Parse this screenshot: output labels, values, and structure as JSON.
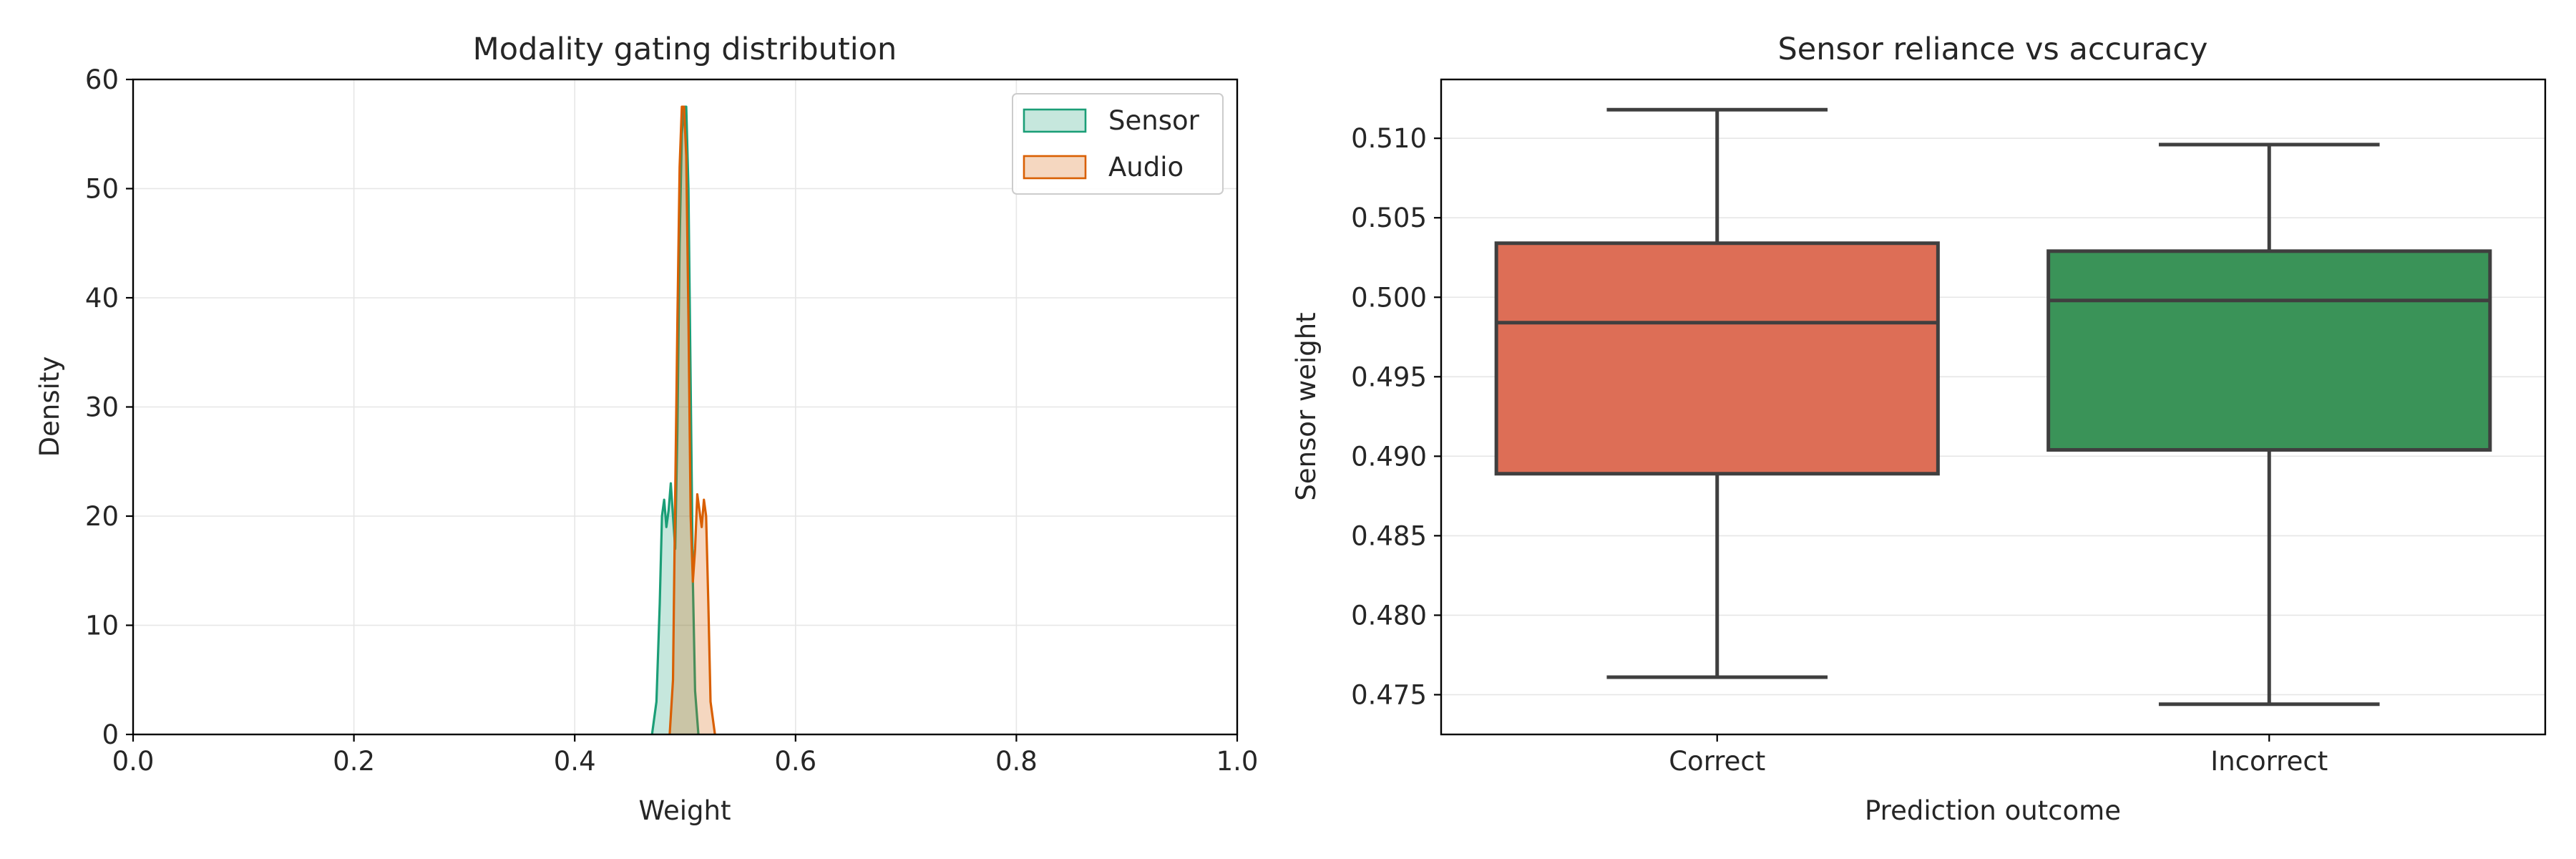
{
  "chart_data": [
    {
      "type": "area",
      "title": "Modality gating distribution",
      "xlabel": "Weight",
      "ylabel": "Density",
      "xlim": [
        0.0,
        1.0
      ],
      "ylim": [
        0,
        60
      ],
      "xticks": [
        "0.0",
        "0.2",
        "0.4",
        "0.6",
        "0.8",
        "1.0"
      ],
      "yticks": [
        "0",
        "10",
        "20",
        "30",
        "40",
        "50",
        "60"
      ],
      "grid": true,
      "legend_position": "top-right",
      "series": [
        {
          "name": "Sensor",
          "color": "#1b9e77",
          "fill": "#1b9e77",
          "points": [
            [
              0.47,
              0
            ],
            [
              0.474,
              3
            ],
            [
              0.477,
              12
            ],
            [
              0.479,
              20
            ],
            [
              0.481,
              21.5
            ],
            [
              0.483,
              19
            ],
            [
              0.485,
              20.5
            ],
            [
              0.487,
              23
            ],
            [
              0.489,
              20
            ],
            [
              0.491,
              17
            ],
            [
              0.493,
              28
            ],
            [
              0.495,
              45
            ],
            [
              0.497,
              55
            ],
            [
              0.499,
              57.5
            ],
            [
              0.501,
              57.5
            ],
            [
              0.503,
              50
            ],
            [
              0.505,
              32
            ],
            [
              0.507,
              14
            ],
            [
              0.509,
              4
            ],
            [
              0.512,
              0
            ]
          ]
        },
        {
          "name": "Audio",
          "color": "#d95f02",
          "fill": "#d95f02",
          "points": [
            [
              0.486,
              0
            ],
            [
              0.489,
              5
            ],
            [
              0.491,
              22
            ],
            [
              0.493,
              38
            ],
            [
              0.495,
              52
            ],
            [
              0.497,
              57.5
            ],
            [
              0.499,
              57.5
            ],
            [
              0.501,
              53
            ],
            [
              0.503,
              38
            ],
            [
              0.505,
              20
            ],
            [
              0.507,
              14
            ],
            [
              0.509,
              17
            ],
            [
              0.511,
              22
            ],
            [
              0.513,
              20.5
            ],
            [
              0.515,
              19
            ],
            [
              0.517,
              21.5
            ],
            [
              0.519,
              20
            ],
            [
              0.521,
              12
            ],
            [
              0.523,
              3
            ],
            [
              0.527,
              0
            ]
          ]
        }
      ]
    },
    {
      "type": "box",
      "title": "Sensor reliance vs accuracy",
      "xlabel": "Prediction outcome",
      "ylabel": "Sensor weight",
      "ylim": [
        0.4725,
        0.5137
      ],
      "yticks": [
        "0.475",
        "0.480",
        "0.485",
        "0.490",
        "0.495",
        "0.500",
        "0.505",
        "0.510"
      ],
      "categories": [
        "Correct",
        "Incorrect"
      ],
      "grid": true,
      "boxes": [
        {
          "category": "Correct",
          "color": "#dd6e56",
          "whisker_low": 0.4761,
          "q1": 0.4889,
          "median": 0.4984,
          "q3": 0.5034,
          "whisker_high": 0.5118
        },
        {
          "category": "Incorrect",
          "color": "#3a9358",
          "whisker_low": 0.4744,
          "q1": 0.4904,
          "median": 0.4998,
          "q3": 0.5029,
          "whisker_high": 0.5096
        }
      ]
    }
  ]
}
